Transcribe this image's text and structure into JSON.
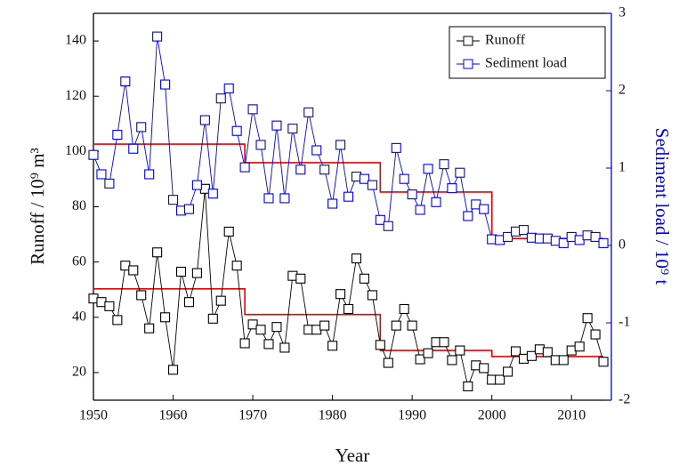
{
  "chart_data": {
    "type": "line",
    "x_label": "Year",
    "y_label": "Runoff / 10⁹ m³",
    "y2_label": "Sediment load / 10⁹ t",
    "x": [
      1950,
      1951,
      1952,
      1953,
      1954,
      1955,
      1956,
      1957,
      1958,
      1959,
      1960,
      1961,
      1962,
      1963,
      1964,
      1965,
      1966,
      1967,
      1968,
      1969,
      1970,
      1971,
      1972,
      1973,
      1974,
      1975,
      1976,
      1977,
      1978,
      1979,
      1980,
      1981,
      1982,
      1983,
      1984,
      1985,
      1986,
      1987,
      1988,
      1989,
      1990,
      1991,
      1992,
      1993,
      1994,
      1995,
      1996,
      1997,
      1998,
      1999,
      2000,
      2001,
      2002,
      2003,
      2004,
      2005,
      2006,
      2007,
      2008,
      2009,
      2010,
      2011,
      2012,
      2013,
      2014
    ],
    "series": [
      {
        "name": "Runoff",
        "color": "#000000",
        "axis": "y",
        "values": [
          46.8,
          45.5,
          44,
          39,
          58.7,
          57,
          48,
          36,
          63.5,
          40,
          21,
          56.5,
          45.5,
          56,
          86.5,
          39.5,
          46,
          71,
          58.7,
          30.6,
          37.4,
          35.5,
          30.3,
          36.5,
          29,
          55,
          54,
          35.5,
          35.5,
          37,
          29.7,
          48.4,
          43,
          61.3,
          54,
          48,
          30,
          23.5,
          37,
          43,
          37,
          24.8,
          27,
          31,
          31,
          24.5,
          28,
          15,
          22.6,
          21.6,
          17.4,
          17.4,
          20.3,
          27.7,
          25,
          26,
          28.4,
          27.4,
          24.5,
          24.5,
          28,
          29.4,
          39.7,
          33.8,
          23.9
        ]
      },
      {
        "name": "Sediment load",
        "color": "#0000ee",
        "axis": "y2",
        "values": [
          1.17,
          0.92,
          0.8,
          1.43,
          2.12,
          1.25,
          1.53,
          0.92,
          2.7,
          2.08,
          0.59,
          0.45,
          0.47,
          0.78,
          1.62,
          0.67,
          1.9,
          2.03,
          1.48,
          1.01,
          1.76,
          1.3,
          0.61,
          1.55,
          0.61,
          1.51,
          0.98,
          1.72,
          1.23,
          0.98,
          0.54,
          1.3,
          0.63,
          0.89,
          0.86,
          0.78,
          0.33,
          0.25,
          1.26,
          0.86,
          0.66,
          0.46,
          0.99,
          0.56,
          1.05,
          0.74,
          0.94,
          0.38,
          0.53,
          0.47,
          0.08,
          0.07,
          0.11,
          0.18,
          0.2,
          0.1,
          0.09,
          0.09,
          0.06,
          0.03,
          0.11,
          0.07,
          0.13,
          0.11,
          0.03
        ]
      }
    ],
    "step_lines": [
      {
        "color": "#ee0000",
        "axis": "y",
        "x": [
          1950,
          1969,
          1969,
          1986,
          1986,
          2000,
          2000,
          2014
        ],
        "values": [
          50.3,
          50.3,
          41,
          41,
          28,
          28,
          25.8,
          25.8
        ]
      },
      {
        "color": "#ee0000",
        "axis": "y2",
        "x": [
          1950,
          1969,
          1969,
          1986,
          1986,
          2000,
          2000,
          2014
        ],
        "values": [
          1.31,
          1.31,
          1.07,
          1.07,
          0.69,
          0.69,
          0.09,
          0.09
        ]
      }
    ],
    "xlim": [
      1950,
      2015
    ],
    "xticks": [
      1950,
      1960,
      1970,
      1980,
      1990,
      2000,
      2010
    ],
    "ylim": [
      10,
      150
    ],
    "yticks": [
      20,
      40,
      60,
      80,
      100,
      120,
      140
    ],
    "y2lim": [
      -2,
      3
    ],
    "y2ticks": [
      -2,
      -1,
      0,
      1,
      2,
      3
    ],
    "y2_color": "#0000ee",
    "legend": "upper-right",
    "marker": "square"
  }
}
